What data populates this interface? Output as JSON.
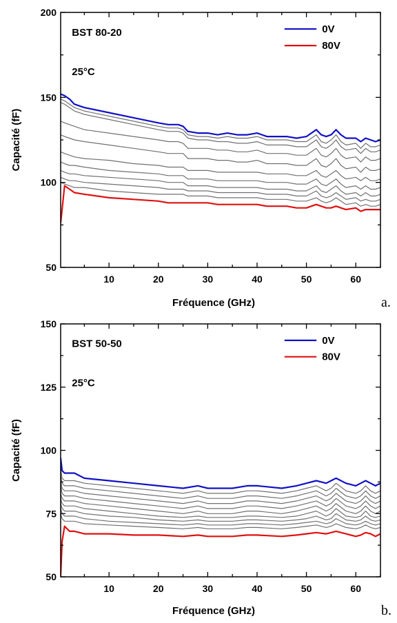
{
  "chart_data": [
    {
      "type": "line",
      "panel_label": "a.",
      "annotations": [
        "BST 80-20",
        "25°C"
      ],
      "xlabel": "Fréquence (GHz)",
      "ylabel": "Capacité (fF)",
      "xlim": [
        0.2,
        65
      ],
      "ylim": [
        50,
        200
      ],
      "xticks": [
        10,
        20,
        30,
        40,
        50,
        60
      ],
      "yticks": [
        50,
        100,
        150,
        200
      ],
      "legend_position": "top-right",
      "legend": [
        {
          "label": "0V",
          "color": "#1010c8"
        },
        {
          "label": "80V",
          "color": "#e01010"
        }
      ],
      "intermediate_color": "#707070",
      "x": [
        0.2,
        1,
        2,
        3,
        5,
        10,
        15,
        20,
        22,
        24,
        25,
        26,
        28,
        30,
        32,
        34,
        36,
        38,
        40,
        42,
        44,
        46,
        48,
        50,
        52,
        53,
        54,
        55,
        56,
        57,
        58,
        60,
        61,
        62,
        63,
        64,
        65
      ],
      "series": [
        {
          "name": "0V",
          "values": [
            152,
            151,
            149,
            146,
            144,
            141,
            138,
            135,
            134,
            134,
            133,
            130,
            129,
            129,
            128,
            129,
            128,
            128,
            129,
            127,
            127,
            127,
            126,
            127,
            131,
            128,
            127,
            128,
            131,
            128,
            126,
            126,
            124,
            126,
            125,
            124,
            125
          ]
        },
        {
          "values": [
            149,
            148,
            146,
            144,
            142,
            139,
            136,
            133,
            132,
            132,
            131,
            128,
            127,
            127,
            126,
            127,
            126,
            126,
            127,
            125,
            125,
            125,
            124,
            124,
            128,
            124,
            123,
            125,
            128,
            124,
            122,
            123,
            120,
            123,
            121,
            121,
            122
          ]
        },
        {
          "values": [
            147,
            146,
            144,
            142,
            140,
            137,
            134,
            131,
            130,
            130,
            129,
            126,
            125,
            125,
            124,
            124,
            123,
            123,
            124,
            122,
            122,
            122,
            121,
            121,
            125,
            121,
            120,
            122,
            125,
            121,
            119,
            120,
            117,
            120,
            118,
            118,
            119
          ]
        },
        {
          "values": [
            136,
            135,
            134,
            133,
            131,
            129,
            127,
            125,
            124,
            124,
            123,
            120,
            120,
            120,
            119,
            119,
            118,
            118,
            119,
            117,
            117,
            117,
            116,
            116,
            120,
            116,
            115,
            117,
            120,
            116,
            114,
            115,
            112,
            115,
            113,
            113,
            114
          ]
        },
        {
          "values": [
            128,
            127,
            126,
            125,
            124,
            122,
            120,
            118,
            117,
            117,
            117,
            114,
            114,
            114,
            113,
            113,
            112,
            112,
            113,
            111,
            111,
            111,
            110,
            110,
            114,
            110,
            109,
            111,
            114,
            110,
            108,
            109,
            106,
            109,
            107,
            107,
            108
          ]
        },
        {
          "values": [
            118,
            117,
            116,
            115,
            114,
            113,
            111,
            110,
            109,
            109,
            109,
            107,
            107,
            107,
            106,
            106,
            106,
            106,
            106,
            105,
            105,
            105,
            104,
            104,
            107,
            104,
            103,
            105,
            107,
            104,
            102,
            103,
            101,
            103,
            101,
            101,
            102
          ]
        },
        {
          "values": [
            112,
            111,
            110,
            110,
            109,
            107,
            106,
            105,
            104,
            104,
            104,
            102,
            102,
            102,
            101,
            101,
            101,
            101,
            101,
            100,
            100,
            100,
            99,
            99,
            102,
            99,
            98,
            100,
            102,
            99,
            97,
            98,
            96,
            98,
            96,
            96,
            97
          ]
        },
        {
          "values": [
            107,
            106,
            105,
            105,
            104,
            103,
            102,
            101,
            100,
            100,
            100,
            98,
            98,
            98,
            97,
            97,
            97,
            97,
            97,
            96,
            96,
            96,
            95,
            95,
            98,
            95,
            94,
            96,
            98,
            95,
            93,
            94,
            92,
            94,
            92,
            92,
            93
          ]
        },
        {
          "values": [
            103,
            102,
            101,
            101,
            100,
            99,
            98,
            97,
            96,
            96,
            96,
            95,
            95,
            95,
            94,
            94,
            94,
            94,
            94,
            93,
            93,
            93,
            92,
            92,
            95,
            92,
            91,
            92,
            94,
            92,
            90,
            91,
            89,
            90,
            89,
            89,
            90
          ]
        },
        {
          "values": [
            100,
            99,
            98,
            97,
            97,
            95,
            94,
            93,
            93,
            93,
            93,
            92,
            92,
            92,
            91,
            91,
            91,
            91,
            91,
            90,
            90,
            90,
            89,
            89,
            91,
            89,
            88,
            89,
            91,
            89,
            87,
            88,
            86,
            87,
            86,
            86,
            87
          ]
        },
        {
          "name": "80V",
          "values": [
            76,
            98,
            96,
            94,
            93,
            91,
            90,
            89,
            88,
            88,
            88,
            88,
            88,
            88,
            87,
            87,
            87,
            87,
            87,
            86,
            86,
            86,
            85,
            85,
            87,
            86,
            85,
            85,
            86,
            85,
            84,
            85,
            83,
            84,
            84,
            84,
            84
          ]
        }
      ]
    },
    {
      "type": "line",
      "panel_label": "b.",
      "annotations": [
        "BST 50-50",
        "25°C"
      ],
      "xlabel": "Fréquence (GHz)",
      "ylabel": "Capacité (fF)",
      "xlim": [
        0.2,
        65
      ],
      "ylim": [
        50,
        150
      ],
      "xticks": [
        10,
        20,
        30,
        40,
        50,
        60
      ],
      "yticks": [
        50,
        75,
        100,
        125,
        150
      ],
      "legend_position": "top-right",
      "legend": [
        {
          "label": "0V",
          "color": "#1010c8"
        },
        {
          "label": "80V",
          "color": "#e01010"
        }
      ],
      "intermediate_color": "#707070",
      "x": [
        0.2,
        0.5,
        1,
        2,
        3,
        5,
        10,
        15,
        20,
        25,
        28,
        30,
        32,
        35,
        38,
        40,
        45,
        48,
        50,
        52,
        54,
        55,
        56,
        58,
        60,
        61,
        62,
        63,
        64,
        65
      ],
      "series": [
        {
          "name": "0V",
          "values": [
            97,
            92,
            91,
            91,
            91,
            89,
            88,
            87,
            86,
            85,
            86,
            85,
            85,
            85,
            86,
            86,
            85,
            86,
            87,
            88,
            87,
            88,
            89,
            87,
            86,
            87,
            88,
            87,
            86,
            87
          ]
        },
        {
          "values": [
            93,
            89,
            88,
            88,
            88,
            87,
            86,
            85,
            84,
            83,
            84,
            83,
            83,
            83,
            84,
            84,
            83,
            84,
            85,
            86,
            84,
            85,
            87,
            84,
            83,
            84,
            86,
            84,
            83,
            84
          ]
        },
        {
          "values": [
            90,
            87,
            86,
            86,
            86,
            85,
            84,
            83,
            82,
            81,
            82,
            81,
            81,
            81,
            82,
            82,
            81,
            82,
            83,
            84,
            82,
            83,
            85,
            82,
            81,
            82,
            84,
            82,
            81,
            82
          ]
        },
        {
          "values": [
            88,
            85,
            84,
            84,
            84,
            83,
            82,
            81,
            80,
            79,
            80,
            79,
            79,
            79,
            80,
            80,
            79,
            80,
            81,
            82,
            80,
            81,
            83,
            80,
            79,
            80,
            82,
            80,
            79,
            80
          ]
        },
        {
          "values": [
            86,
            83,
            82,
            82,
            82,
            81,
            80,
            79,
            78,
            77,
            78,
            77,
            77,
            77,
            78,
            78,
            77,
            78,
            79,
            80,
            78,
            79,
            81,
            78,
            77,
            78,
            80,
            78,
            77,
            78
          ]
        },
        {
          "values": [
            83,
            81,
            80,
            80,
            80,
            79,
            78,
            77,
            76,
            75,
            76,
            75,
            75,
            75,
            76,
            76,
            75,
            76,
            77,
            78,
            76,
            77,
            79,
            76,
            75,
            76,
            78,
            76,
            75,
            76
          ]
        },
        {
          "values": [
            81,
            79,
            78,
            78,
            78,
            77,
            76,
            75,
            74,
            73.5,
            74,
            73.5,
            73.5,
            73.5,
            74,
            74,
            73.5,
            74,
            75,
            76,
            74,
            75,
            77,
            74,
            73.5,
            74,
            76,
            74,
            73.5,
            74
          ]
        },
        {
          "values": [
            79,
            77,
            76,
            76,
            76,
            75,
            74,
            73.5,
            72.5,
            72,
            72.5,
            72,
            72,
            72,
            72.5,
            72.5,
            72,
            72.5,
            73,
            74,
            72.5,
            73,
            75,
            72.5,
            72,
            72.5,
            74,
            72.5,
            72,
            72.5
          ]
        },
        {
          "values": [
            77,
            75,
            74,
            74,
            74,
            73,
            72,
            71.5,
            71,
            70.5,
            71,
            70.5,
            70.5,
            70.5,
            71,
            71,
            70.5,
            71,
            71.5,
            72,
            71,
            71.5,
            73,
            71,
            70.5,
            71,
            72,
            71,
            70.5,
            71
          ]
        },
        {
          "values": [
            75,
            73,
            72,
            72,
            72,
            71,
            70.5,
            70,
            69.5,
            69,
            69.5,
            69,
            69,
            69,
            69.5,
            69.5,
            69,
            69.5,
            70,
            70.5,
            69.5,
            70,
            71,
            69.5,
            69,
            69.5,
            70.5,
            69.5,
            69,
            69.5
          ]
        },
        {
          "name": "80V",
          "values": [
            50,
            64,
            70,
            68,
            68,
            67,
            67,
            66.5,
            66.5,
            66,
            66.5,
            66,
            66,
            66,
            66.5,
            66.5,
            66,
            66.5,
            67,
            67.5,
            67,
            67.5,
            68,
            67,
            66,
            66.5,
            67.5,
            67,
            66,
            67
          ]
        }
      ]
    }
  ]
}
